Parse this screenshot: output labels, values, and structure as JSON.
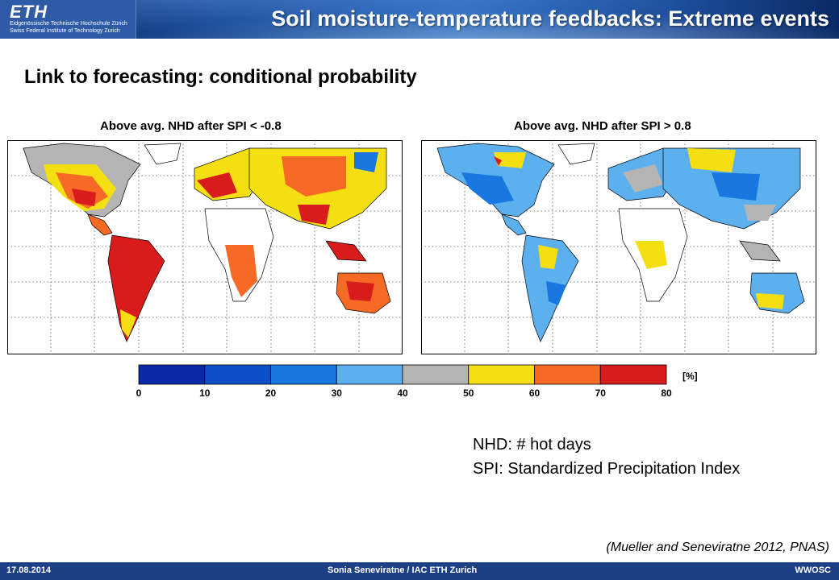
{
  "header": {
    "logo_text": "ETH",
    "logo_line1": "Eidgenössische Technische Hochschule Zürich",
    "logo_line2": "Swiss Federal Institute of Technology Zurich",
    "title": "Soil moisture-temperature feedbacks: Extreme events"
  },
  "slide": {
    "subtitle": "Link to forecasting: conditional probability",
    "map_left_title": "Above avg. NHD after SPI < -0.8",
    "map_right_title": "Above avg. NHD after SPI >  0.8",
    "definitions": [
      "NHD: # hot days",
      "SPI: Standardized Precipitation Index"
    ],
    "citation": "(Mueller and Seneviratne 2012, PNAS)"
  },
  "colorbar": {
    "unit": "[%]",
    "ticks": [
      "0",
      "10",
      "20",
      "30",
      "40",
      "50",
      "60",
      "70",
      "80"
    ],
    "colors": [
      "#0a2aa8",
      "#0d4fc8",
      "#1877e0",
      "#5cb0ee",
      "#b4b4b4",
      "#f4e012",
      "#f76a26",
      "#d81b1b"
    ]
  },
  "footer": {
    "date": "17.08.2014",
    "author": "Sonia Seneviratne / IAC ETH Zurich",
    "event": "WWOSC"
  }
}
